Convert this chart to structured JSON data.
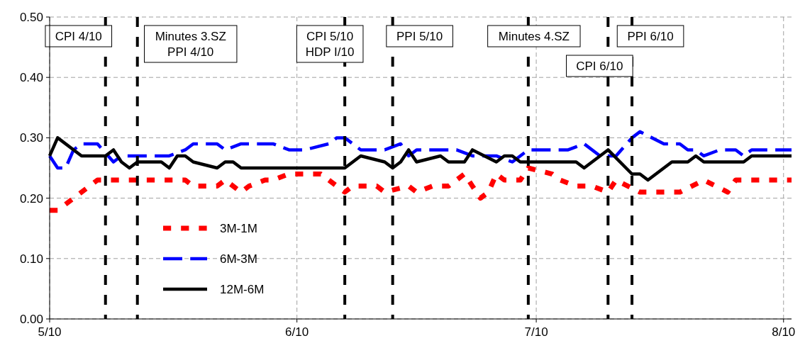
{
  "chart_data": {
    "type": "line",
    "xlim": [
      "2010-05-01",
      "2010-08-02"
    ],
    "xticks": [
      {
        "value": "2010-05-01",
        "label": "5/10"
      },
      {
        "value": "2010-06-01",
        "label": "6/10"
      },
      {
        "value": "2010-07-01",
        "label": "7/10"
      },
      {
        "value": "2010-08-01",
        "label": "8/10"
      }
    ],
    "ylim": [
      0,
      0.5
    ],
    "yticks": [
      {
        "value": 0,
        "label": "0.00"
      },
      {
        "value": 0.1,
        "label": "0.10"
      },
      {
        "value": 0.2,
        "label": "0.20"
      },
      {
        "value": 0.3,
        "label": "0.30"
      },
      {
        "value": 0.4,
        "label": "0.40"
      },
      {
        "value": 0.5,
        "label": "0.50"
      }
    ],
    "grid": true,
    "legend": "bottom left",
    "series": [
      {
        "name": "3M-1M",
        "color": "#ff0000",
        "line_style": "dashed",
        "x": [
          "2010-05-01",
          "2010-05-02",
          "2010-05-04",
          "2010-05-07",
          "2010-05-18",
          "2010-05-19",
          "2010-05-22",
          "2010-05-23",
          "2010-05-25",
          "2010-05-26",
          "2010-05-28",
          "2010-05-29",
          "2010-05-31",
          "2010-06-04",
          "2010-06-05",
          "2010-06-07",
          "2010-06-08",
          "2010-06-11",
          "2010-06-12",
          "2010-06-15",
          "2010-06-16",
          "2010-06-18",
          "2010-06-20",
          "2010-06-22",
          "2010-06-23",
          "2010-06-24",
          "2010-06-25",
          "2010-06-26",
          "2010-06-27",
          "2010-06-29",
          "2010-06-30",
          "2010-07-03",
          "2010-07-04",
          "2010-07-06",
          "2010-07-08",
          "2010-07-10",
          "2010-07-11",
          "2010-07-14",
          "2010-07-19",
          "2010-07-22",
          "2010-07-25",
          "2010-07-26",
          "2010-08-02"
        ],
        "values": [
          0.18,
          0.18,
          0.2,
          0.23,
          0.23,
          0.22,
          0.22,
          0.23,
          0.21,
          0.22,
          0.23,
          0.23,
          0.24,
          0.24,
          0.23,
          0.21,
          0.22,
          0.22,
          0.21,
          0.22,
          0.21,
          0.22,
          0.22,
          0.24,
          0.22,
          0.2,
          0.21,
          0.24,
          0.23,
          0.23,
          0.25,
          0.24,
          0.23,
          0.22,
          0.22,
          0.21,
          0.23,
          0.21,
          0.21,
          0.23,
          0.21,
          0.23,
          0.23
        ]
      },
      {
        "name": "6M-3M",
        "color": "#0000ff",
        "line_style": "longdash",
        "x": [
          "2010-05-01",
          "2010-05-02",
          "2010-05-03",
          "2010-05-04",
          "2010-05-05",
          "2010-05-07",
          "2010-05-09",
          "2010-05-10",
          "2010-05-16",
          "2010-05-18",
          "2010-05-19",
          "2010-05-22",
          "2010-05-23",
          "2010-05-25",
          "2010-05-29",
          "2010-05-31",
          "2010-06-02",
          "2010-06-05",
          "2010-06-06",
          "2010-06-07",
          "2010-06-09",
          "2010-06-12",
          "2010-06-14",
          "2010-06-15",
          "2010-06-16",
          "2010-06-21",
          "2010-06-23",
          "2010-06-26",
          "2010-06-28",
          "2010-06-30",
          "2010-07-05",
          "2010-07-07",
          "2010-07-09",
          "2010-07-11",
          "2010-07-13",
          "2010-07-14",
          "2010-07-17",
          "2010-07-19",
          "2010-07-20",
          "2010-07-21",
          "2010-07-22",
          "2010-07-24",
          "2010-07-26",
          "2010-07-27",
          "2010-07-28",
          "2010-08-02"
        ],
        "values": [
          0.27,
          0.25,
          0.25,
          0.28,
          0.29,
          0.29,
          0.26,
          0.27,
          0.27,
          0.28,
          0.29,
          0.29,
          0.28,
          0.29,
          0.29,
          0.28,
          0.28,
          0.29,
          0.3,
          0.3,
          0.28,
          0.28,
          0.29,
          0.27,
          0.28,
          0.28,
          0.27,
          0.27,
          0.26,
          0.28,
          0.28,
          0.29,
          0.27,
          0.27,
          0.3,
          0.31,
          0.29,
          0.29,
          0.28,
          0.28,
          0.27,
          0.28,
          0.28,
          0.27,
          0.28,
          0.28
        ]
      },
      {
        "name": "12M-6M",
        "color": "#000000",
        "line_style": "solid",
        "x": [
          "2010-05-01",
          "2010-05-02",
          "2010-05-05",
          "2010-05-08",
          "2010-05-09",
          "2010-05-10",
          "2010-05-11",
          "2010-05-12",
          "2010-05-15",
          "2010-05-16",
          "2010-05-17",
          "2010-05-18",
          "2010-05-19",
          "2010-05-22",
          "2010-05-23",
          "2010-05-24",
          "2010-05-25",
          "2010-06-07",
          "2010-06-09",
          "2010-06-12",
          "2010-06-13",
          "2010-06-14",
          "2010-06-15",
          "2010-06-16",
          "2010-06-19",
          "2010-06-20",
          "2010-06-22",
          "2010-06-23",
          "2010-06-26",
          "2010-06-27",
          "2010-06-28",
          "2010-06-29",
          "2010-07-06",
          "2010-07-07",
          "2010-07-10",
          "2010-07-13",
          "2010-07-14",
          "2010-07-15",
          "2010-07-18",
          "2010-07-20",
          "2010-07-21",
          "2010-07-22",
          "2010-07-27",
          "2010-07-28",
          "2010-08-02"
        ],
        "values": [
          0.27,
          0.3,
          0.27,
          0.27,
          0.28,
          0.26,
          0.25,
          0.26,
          0.26,
          0.25,
          0.27,
          0.27,
          0.26,
          0.25,
          0.26,
          0.26,
          0.25,
          0.25,
          0.27,
          0.26,
          0.25,
          0.26,
          0.28,
          0.26,
          0.27,
          0.26,
          0.26,
          0.28,
          0.26,
          0.27,
          0.27,
          0.26,
          0.26,
          0.25,
          0.28,
          0.24,
          0.24,
          0.23,
          0.26,
          0.26,
          0.27,
          0.26,
          0.26,
          0.27,
          0.27
        ]
      }
    ],
    "ref_lines": [
      {
        "axis": "x",
        "value": "2010-05-08",
        "label": "CPI 4/10",
        "color": "#000000",
        "line_style": "dashed"
      },
      {
        "axis": "x",
        "value": "2010-05-12",
        "label": "Minutes 3.SZ\nPPI 4/10",
        "color": "#000000",
        "line_style": "dashed"
      },
      {
        "axis": "x",
        "value": "2010-06-07",
        "label": "CPI 5/10\nHDP I/10",
        "color": "#000000",
        "line_style": "dashed"
      },
      {
        "axis": "x",
        "value": "2010-06-13",
        "label": "PPI 5/10",
        "color": "#000000",
        "line_style": "dashed"
      },
      {
        "axis": "x",
        "value": "2010-06-30",
        "label": "Minutes 4.SZ",
        "color": "#000000",
        "line_style": "dashed"
      },
      {
        "axis": "x",
        "value": "2010-07-10",
        "label": "CPI 6/10",
        "color": "#000000",
        "line_style": "dashed"
      },
      {
        "axis": "x",
        "value": "2010-07-13",
        "label": "PPI 6/10",
        "color": "#000000",
        "line_style": "dashed"
      }
    ]
  }
}
